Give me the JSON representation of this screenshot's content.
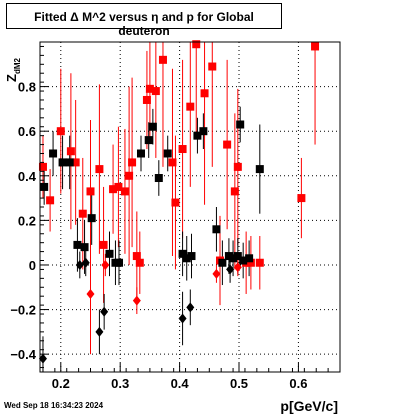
{
  "title": "Fitted Δ M^2 versus η and p for Global deuteron",
  "timestamp": "Wed Sep 18 16:34:23 2024",
  "chart_data": {
    "type": "scatter",
    "xlabel": "p[GeV/c]",
    "ylabel": "Z",
    "ylabel_sub": "dM2",
    "xlim": [
      0.165,
      0.67
    ],
    "ylim": [
      -0.48,
      1.0
    ],
    "xticks": [
      0.2,
      0.3,
      0.4,
      0.5,
      0.6
    ],
    "xtick_labels": [
      "0.2",
      "0.3",
      "0.4",
      "0.5",
      "0.6"
    ],
    "yticks": [
      -0.4,
      -0.2,
      0,
      0.2,
      0.4,
      0.6,
      0.8
    ],
    "ytick_labels": [
      "−0.4",
      "−0.2",
      "0",
      "0.2",
      "0.4",
      "0.6",
      "0.8"
    ],
    "grid": true,
    "series": [
      {
        "marker": "square",
        "color": "#ff0000",
        "points": [
          {
            "x": 0.17,
            "y": 0.44,
            "err": 0.14
          },
          {
            "x": 0.182,
            "y": 0.29,
            "err": 0.14
          },
          {
            "x": 0.2,
            "y": 0.6,
            "err": 0.28
          },
          {
            "x": 0.217,
            "y": 0.51,
            "err": 0.35
          },
          {
            "x": 0.225,
            "y": 0.46,
            "err": 0.28
          },
          {
            "x": 0.237,
            "y": 0.23,
            "err": 0.25
          },
          {
            "x": 0.25,
            "y": 0.33,
            "err": 0.32
          },
          {
            "x": 0.265,
            "y": 0.43,
            "err": 0.38
          },
          {
            "x": 0.272,
            "y": 0.09,
            "err": 0.26
          },
          {
            "x": 0.288,
            "y": 0.34,
            "err": 0.2
          },
          {
            "x": 0.297,
            "y": 0.35,
            "err": 0.27
          },
          {
            "x": 0.308,
            "y": 0.33,
            "err": 0.28
          },
          {
            "x": 0.315,
            "y": 0.4,
            "err": 0.4
          },
          {
            "x": 0.32,
            "y": 0.46,
            "err": 0.38
          },
          {
            "x": 0.328,
            "y": 0.04,
            "err": 0.2
          },
          {
            "x": 0.333,
            "y": 0.01,
            "err": 0.14
          },
          {
            "x": 0.345,
            "y": 0.74,
            "err": 0.22
          },
          {
            "x": 0.35,
            "y": 0.79,
            "err": 0.22
          },
          {
            "x": 0.36,
            "y": 0.78,
            "err": 0.3
          },
          {
            "x": 0.372,
            "y": 0.92,
            "err": 0.48
          },
          {
            "x": 0.388,
            "y": 0.46,
            "err": 0.42
          },
          {
            "x": 0.393,
            "y": 0.28,
            "err": 0.3
          },
          {
            "x": 0.405,
            "y": 0.52,
            "err": 0.4
          },
          {
            "x": 0.418,
            "y": 0.71,
            "err": 0.36
          },
          {
            "x": 0.428,
            "y": 0.99,
            "err": 0.4
          },
          {
            "x": 0.442,
            "y": 0.77,
            "err": 0.5
          },
          {
            "x": 0.455,
            "y": 0.89,
            "err": 0.45
          },
          {
            "x": 0.468,
            "y": 0.02,
            "err": 0.2
          },
          {
            "x": 0.48,
            "y": 0.54,
            "err": 0.38
          },
          {
            "x": 0.493,
            "y": 0.33,
            "err": 0.35
          },
          {
            "x": 0.498,
            "y": 0.44,
            "err": 0.35
          },
          {
            "x": 0.512,
            "y": 0.01,
            "err": 0.14
          },
          {
            "x": 0.52,
            "y": 0.01,
            "err": 0.12
          },
          {
            "x": 0.535,
            "y": 0.01,
            "err": 0.12
          },
          {
            "x": 0.605,
            "y": 0.3,
            "err": 0.18
          },
          {
            "x": 0.628,
            "y": 0.98,
            "err": 0.44
          }
        ]
      },
      {
        "marker": "square",
        "color": "#000000",
        "points": [
          {
            "x": 0.172,
            "y": 0.35,
            "err": 0.08
          },
          {
            "x": 0.187,
            "y": 0.5,
            "err": 0.1
          },
          {
            "x": 0.203,
            "y": 0.46,
            "err": 0.12
          },
          {
            "x": 0.215,
            "y": 0.46,
            "err": 0.12
          },
          {
            "x": 0.228,
            "y": 0.09,
            "err": 0.12
          },
          {
            "x": 0.24,
            "y": 0.08,
            "err": 0.12
          },
          {
            "x": 0.252,
            "y": 0.21,
            "err": 0.12
          },
          {
            "x": 0.282,
            "y": 0.05,
            "err": 0.1
          },
          {
            "x": 0.292,
            "y": 0.01,
            "err": 0.1
          },
          {
            "x": 0.298,
            "y": 0.01,
            "err": 0.1
          },
          {
            "x": 0.335,
            "y": 0.5,
            "err": 0.08
          },
          {
            "x": 0.348,
            "y": 0.56,
            "err": 0.08
          },
          {
            "x": 0.355,
            "y": 0.62,
            "err": 0.08
          },
          {
            "x": 0.365,
            "y": 0.39,
            "err": 0.08
          },
          {
            "x": 0.38,
            "y": 0.5,
            "err": 0.08
          },
          {
            "x": 0.405,
            "y": 0.05,
            "err": 0.1
          },
          {
            "x": 0.412,
            "y": 0.03,
            "err": 0.1
          },
          {
            "x": 0.42,
            "y": 0.04,
            "err": 0.1
          },
          {
            "x": 0.43,
            "y": 0.58,
            "err": 0.08
          },
          {
            "x": 0.44,
            "y": 0.6,
            "err": 0.08
          },
          {
            "x": 0.462,
            "y": 0.16,
            "err": 0.1
          },
          {
            "x": 0.472,
            "y": 0.01,
            "err": 0.1
          },
          {
            "x": 0.483,
            "y": 0.04,
            "err": 0.08
          },
          {
            "x": 0.49,
            "y": 0.03,
            "err": 0.08
          },
          {
            "x": 0.498,
            "y": 0.04,
            "err": 0.08
          },
          {
            "x": 0.502,
            "y": 0.63,
            "err": 0.08
          },
          {
            "x": 0.507,
            "y": 0.02,
            "err": 0.08
          },
          {
            "x": 0.517,
            "y": 0.03,
            "err": 0.08
          },
          {
            "x": 0.535,
            "y": 0.43,
            "err": 0.2
          }
        ]
      },
      {
        "marker": "diamond",
        "color": "#ff0000",
        "points": [
          {
            "x": 0.25,
            "y": -0.13,
            "err": 0.27
          },
          {
            "x": 0.275,
            "y": 0.0,
            "err": 0.05
          },
          {
            "x": 0.328,
            "y": -0.16,
            "err": 0.06
          },
          {
            "x": 0.462,
            "y": -0.04,
            "err": 0.04
          },
          {
            "x": 0.498,
            "y": -0.01,
            "err": 0.04
          }
        ]
      },
      {
        "marker": "diamond",
        "color": "#000000",
        "points": [
          {
            "x": 0.17,
            "y": -0.42,
            "err": 0.1
          },
          {
            "x": 0.232,
            "y": 0.0,
            "err": 0.06
          },
          {
            "x": 0.242,
            "y": 0.01,
            "err": 0.06
          },
          {
            "x": 0.265,
            "y": -0.3,
            "err": 0.1
          },
          {
            "x": 0.273,
            "y": -0.21,
            "err": 0.08
          },
          {
            "x": 0.405,
            "y": -0.24,
            "err": 0.12
          },
          {
            "x": 0.418,
            "y": -0.19,
            "err": 0.08
          },
          {
            "x": 0.485,
            "y": -0.02,
            "err": 0.06
          }
        ]
      }
    ]
  }
}
